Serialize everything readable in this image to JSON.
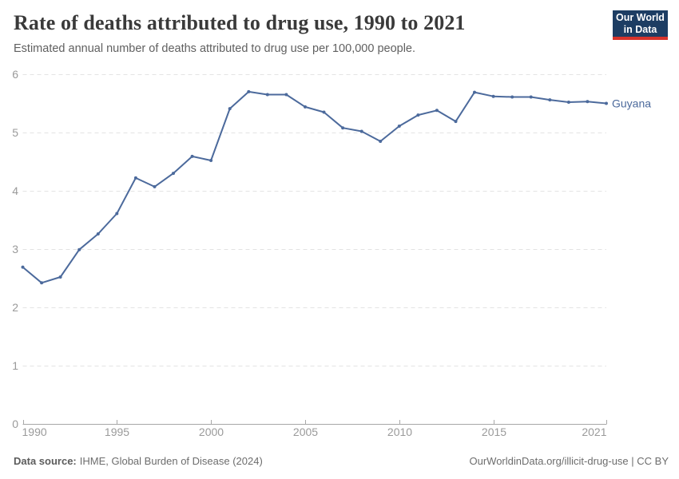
{
  "header": {
    "title": "Rate of deaths attributed to drug use, 1990 to 2021",
    "subtitle": "Estimated annual number of deaths attributed to drug use per 100,000 people.",
    "logo": {
      "line1": "Our World",
      "line2": "in Data"
    }
  },
  "chart_data": {
    "type": "line",
    "title": "Rate of deaths attributed to drug use, 1990 to 2021",
    "xlabel": "",
    "ylabel": "",
    "xlim": [
      1990,
      2021
    ],
    "ylim": [
      0,
      6
    ],
    "x_ticks": [
      1990,
      1995,
      2000,
      2005,
      2010,
      2015,
      2021
    ],
    "y_ticks": [
      0,
      1,
      2,
      3,
      4,
      5,
      6
    ],
    "grid": "horizontal-dashed",
    "legend_position": "end-of-line-label",
    "x": [
      1990,
      1991,
      1992,
      1993,
      1994,
      1995,
      1996,
      1997,
      1998,
      1999,
      2000,
      2001,
      2002,
      2003,
      2004,
      2005,
      2006,
      2007,
      2008,
      2009,
      2010,
      2011,
      2012,
      2013,
      2014,
      2015,
      2016,
      2017,
      2018,
      2019,
      2020,
      2021
    ],
    "series": [
      {
        "name": "Guyana",
        "color": "#4c6a9c",
        "values": [
          2.69,
          2.42,
          2.52,
          2.99,
          3.26,
          3.61,
          4.22,
          4.07,
          4.3,
          4.59,
          4.52,
          5.41,
          5.7,
          5.65,
          5.65,
          5.44,
          5.35,
          5.08,
          5.02,
          4.85,
          5.11,
          5.3,
          5.38,
          5.19,
          5.69,
          5.62,
          5.61,
          5.61,
          5.56,
          5.52,
          5.53,
          5.5
        ]
      }
    ]
  },
  "footer": {
    "source_label": "Data source:",
    "source_text": "IHME, Global Burden of Disease (2024)",
    "attribution": "OurWorldinData.org/illicit-drug-use | CC BY"
  },
  "colors": {
    "series_blue": "#4c6a9c",
    "logo_bg": "#1d3d63",
    "logo_red": "#d7332b",
    "gridline": "#e3e3e3",
    "axis_line": "#a7a7a7",
    "tick_label": "#9a9a9a"
  }
}
